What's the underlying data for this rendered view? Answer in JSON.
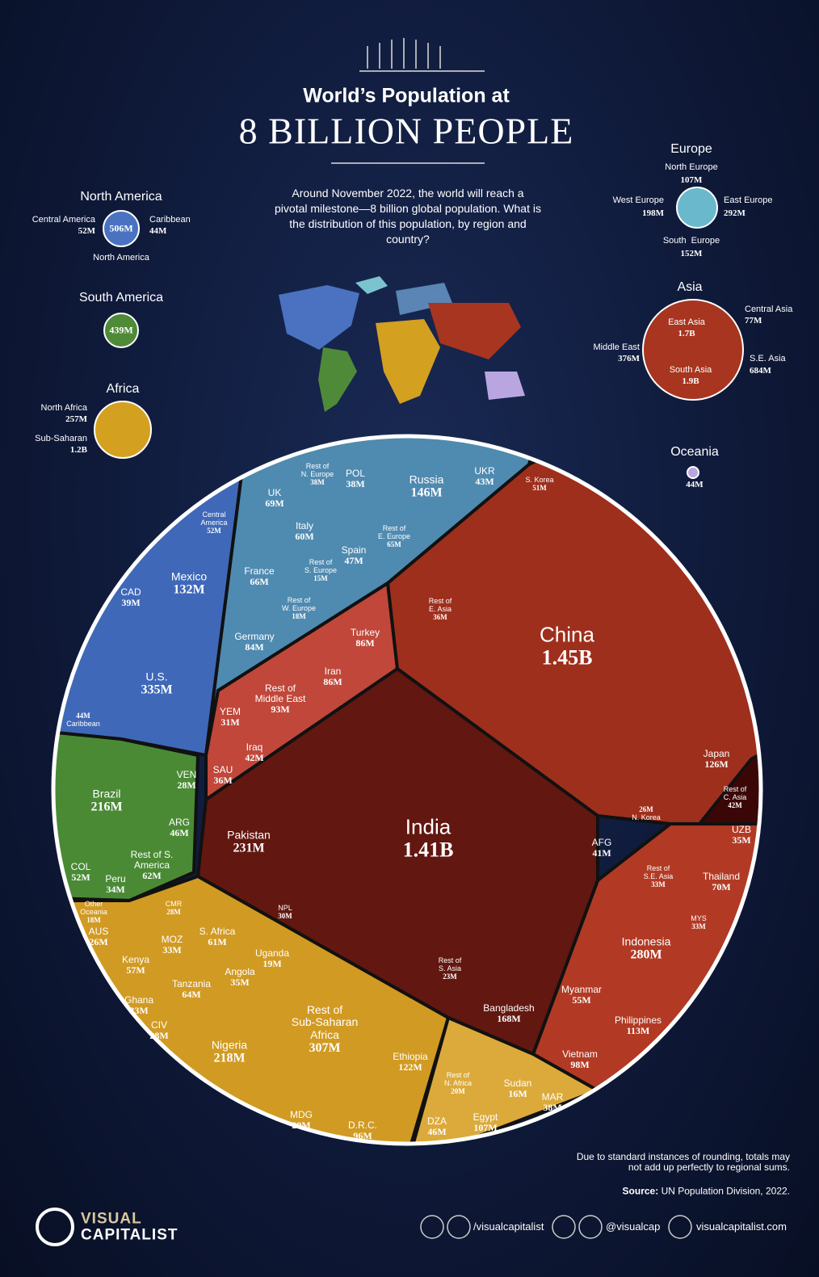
{
  "header": {
    "title": "World’s Population at",
    "subtitle": "8 BILLION PEOPLE",
    "intro": "Around November 2022, the world will reach a pivotal milestone—8 billion global population. What is the distribution of this population, by region and country?"
  },
  "regions": [
    {
      "name": "North America",
      "total": "506M",
      "parts": [
        {
          "name": "Central America",
          "value": "52M"
        },
        {
          "name": "Caribbean",
          "value": "44M"
        },
        {
          "name": "North America"
        }
      ]
    },
    {
      "name": "South America",
      "total": "439M"
    },
    {
      "name": "Africa",
      "parts": [
        {
          "name": "North Africa",
          "value": "257M"
        },
        {
          "name": "Sub-Saharan",
          "value": "1.2B"
        }
      ]
    },
    {
      "name": "Europe",
      "parts": [
        {
          "name": "North Europe",
          "value": "107M"
        },
        {
          "name": "West Europe",
          "value": "198M"
        },
        {
          "name": "East Europe",
          "value": "292M"
        },
        {
          "name": "South  Europe",
          "value": "152M"
        }
      ]
    },
    {
      "name": "Asia",
      "parts": [
        {
          "name": "East Asia",
          "value": "1.7B"
        },
        {
          "name": "Central Asia",
          "value": "77M"
        },
        {
          "name": "Middle East",
          "value": "376M"
        },
        {
          "name": "S.E. Asia",
          "value": "684M"
        },
        {
          "name": "South Asia",
          "value": "1.9B"
        }
      ]
    },
    {
      "name": "Oceania",
      "total": "44M"
    }
  ],
  "cells": [
    {
      "name": "China",
      "value": "1.45B"
    },
    {
      "name": "India",
      "value": "1.41B"
    },
    {
      "name": "Pakistan",
      "value": "231M"
    },
    {
      "name": "Japan",
      "value": "126M"
    },
    {
      "name": "S. Korea",
      "value": "51M"
    },
    {
      "name": "Rest of\nE. Asia",
      "value": "36M"
    },
    {
      "name": "N. Korea",
      "value": "26M"
    },
    {
      "name": "Rest of\nC. Asia",
      "value": "42M"
    },
    {
      "name": "UZB",
      "value": "35M"
    },
    {
      "name": "AFG",
      "value": "41M"
    },
    {
      "name": "Indonesia",
      "value": "280M"
    },
    {
      "name": "Thailand",
      "value": "70M"
    },
    {
      "name": "MYS",
      "value": "33M"
    },
    {
      "name": "Rest of\nS.E. Asia",
      "value": "33M"
    },
    {
      "name": "Myanmar",
      "value": "55M"
    },
    {
      "name": "Philippines",
      "value": "113M"
    },
    {
      "name": "Vietnam",
      "value": "98M"
    },
    {
      "name": "Bangladesh",
      "value": "168M"
    },
    {
      "name": "Rest of\nS. Asia",
      "value": "23M"
    },
    {
      "name": "NPL",
      "value": "30M"
    },
    {
      "name": "Turkey",
      "value": "86M"
    },
    {
      "name": "Iran",
      "value": "86M"
    },
    {
      "name": "Rest of\nMiddle East",
      "value": "93M"
    },
    {
      "name": "YEM",
      "value": "31M"
    },
    {
      "name": "Iraq",
      "value": "42M"
    },
    {
      "name": "SAU",
      "value": "36M"
    },
    {
      "name": "Russia",
      "value": "146M"
    },
    {
      "name": "UKR",
      "value": "43M"
    },
    {
      "name": "POL",
      "value": "38M"
    },
    {
      "name": "Rest of\nE. Europe",
      "value": "65M"
    },
    {
      "name": "Rest of\nN. Europe",
      "value": "38M"
    },
    {
      "name": "UK",
      "value": "69M"
    },
    {
      "name": "Italy",
      "value": "60M"
    },
    {
      "name": "Spain",
      "value": "47M"
    },
    {
      "name": "Rest of\nS. Europe",
      "value": "15M"
    },
    {
      "name": "France",
      "value": "66M"
    },
    {
      "name": "Rest of\nW. Europe",
      "value": "18M"
    },
    {
      "name": "Germany",
      "value": "84M"
    },
    {
      "name": "Central\nAmerica",
      "value": "52M"
    },
    {
      "name": "Mexico",
      "value": "132M"
    },
    {
      "name": "CAD",
      "value": "39M"
    },
    {
      "name": "U.S.",
      "value": "335M"
    },
    {
      "name": "Caribbean",
      "value": "44M"
    },
    {
      "name": "Brazil",
      "value": "216M"
    },
    {
      "name": "VEN",
      "value": "28M"
    },
    {
      "name": "ARG",
      "value": "46M"
    },
    {
      "name": "Rest of S.\nAmerica",
      "value": "62M"
    },
    {
      "name": "COL",
      "value": "52M"
    },
    {
      "name": "Peru",
      "value": "34M"
    },
    {
      "name": "Other\nOceania",
      "value": "18M"
    },
    {
      "name": "AUS",
      "value": "26M"
    },
    {
      "name": "CMR",
      "value": "28M"
    },
    {
      "name": "S. Africa",
      "value": "61M"
    },
    {
      "name": "MOZ",
      "value": "33M"
    },
    {
      "name": "Kenya",
      "value": "57M"
    },
    {
      "name": "Uganda",
      "value": "19M"
    },
    {
      "name": "Angola",
      "value": "35M"
    },
    {
      "name": "Tanzania",
      "value": "64M"
    },
    {
      "name": "Ghana",
      "value": "33M"
    },
    {
      "name": "CIV",
      "value": "28M"
    },
    {
      "name": "Nigeria",
      "value": "218M"
    },
    {
      "name": "Rest of\nSub-Saharan\nAfrica",
      "value": "307M"
    },
    {
      "name": "Ethiopia",
      "value": "122M"
    },
    {
      "name": "MDG",
      "value": "29M"
    },
    {
      "name": "D.R.C.",
      "value": "96M"
    },
    {
      "name": "Rest of\nN. Africa",
      "value": "20M"
    },
    {
      "name": "Sudan",
      "value": "16M"
    },
    {
      "name": "Egypt",
      "value": "107M"
    },
    {
      "name": "MAR",
      "value": "38M"
    },
    {
      "name": "DZA",
      "value": "46M"
    }
  ],
  "footer": {
    "note": "Due to standard instances of rounding, totals may not add up perfectly to regional sums.",
    "source_label": "Source:",
    "source": "UN Population Division, 2022.",
    "logo_top": "VISUAL",
    "logo_bottom": "CAPITALIST",
    "facebook": "/visualcapitalist",
    "twitter": "@visualcap",
    "website": "visualcapitalist.com"
  }
}
